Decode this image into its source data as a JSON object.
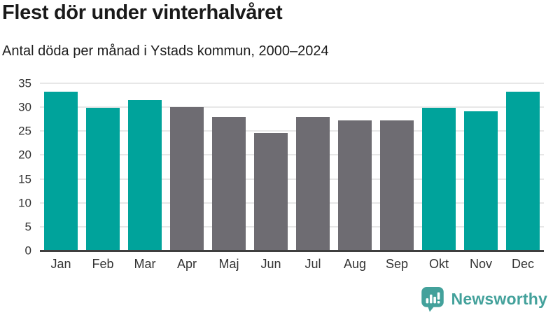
{
  "header": {
    "title": "Flest dör under vinterhalvåret",
    "subtitle": "Antal döda per månad i Ystads kommun, 2000–2024"
  },
  "chart_data": {
    "type": "bar",
    "title": "Flest dör under vinterhalvåret",
    "subtitle": "Antal döda per månad i Ystads kommun, 2000–2024",
    "categories": [
      "Jan",
      "Feb",
      "Mar",
      "Apr",
      "Maj",
      "Jun",
      "Jul",
      "Aug",
      "Sep",
      "Okt",
      "Nov",
      "Dec"
    ],
    "values": [
      33.3,
      29.9,
      31.5,
      30.0,
      27.9,
      24.6,
      27.9,
      27.2,
      27.3,
      29.9,
      29.2,
      33.3
    ],
    "bar_color_keys": [
      "highlight",
      "highlight",
      "highlight",
      "base",
      "base",
      "base",
      "base",
      "base",
      "base",
      "highlight",
      "highlight",
      "highlight"
    ],
    "xlabel": "",
    "ylabel": "",
    "ylim": [
      0,
      35
    ],
    "ytick_step": 5,
    "grid": true,
    "legend_position": "none",
    "colors": {
      "highlight": "#00a39b",
      "base": "#6e6c72"
    }
  },
  "axis_style": {
    "tick_color": "#333333",
    "grid_color": "#e7e7e7",
    "axis_line_color": "#3f3f3f"
  },
  "footer": {
    "brand_name": "Newsworthy",
    "brand_color": "#43a19b"
  }
}
